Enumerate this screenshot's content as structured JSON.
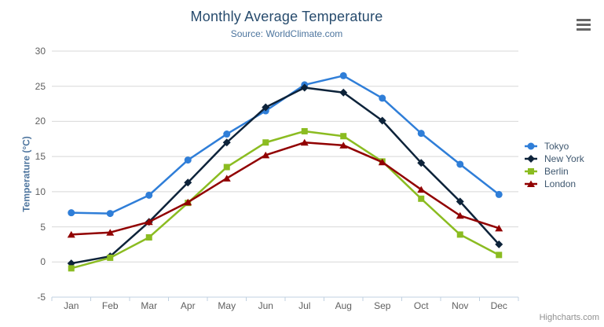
{
  "chart": {
    "title": "Monthly Average Temperature",
    "subtitle": "Source: WorldClimate.com",
    "y_axis_title": "Temperature (°C)",
    "credits": "Highcharts.com",
    "export_menu_icon": "hamburger-icon"
  },
  "chart_data": {
    "type": "line",
    "title": "Monthly Average Temperature",
    "subtitle": "Source: WorldClimate.com",
    "xlabel": "",
    "ylabel": "Temperature (°C)",
    "categories": [
      "Jan",
      "Feb",
      "Mar",
      "Apr",
      "May",
      "Jun",
      "Jul",
      "Aug",
      "Sep",
      "Oct",
      "Nov",
      "Dec"
    ],
    "series": [
      {
        "name": "Tokyo",
        "color": "#2f7ed8",
        "marker": "circle",
        "values": [
          7.0,
          6.9,
          9.5,
          14.5,
          18.2,
          21.5,
          25.2,
          26.5,
          23.3,
          18.3,
          13.9,
          9.6
        ]
      },
      {
        "name": "New York",
        "color": "#0d233a",
        "marker": "diamond",
        "values": [
          -0.2,
          0.8,
          5.7,
          11.3,
          17.0,
          22.0,
          24.8,
          24.1,
          20.1,
          14.1,
          8.6,
          2.5
        ]
      },
      {
        "name": "Berlin",
        "color": "#8bbc21",
        "marker": "square",
        "values": [
          -0.9,
          0.6,
          3.5,
          8.4,
          13.5,
          17.0,
          18.6,
          17.9,
          14.3,
          9.0,
          3.9,
          1.0
        ]
      },
      {
        "name": "London",
        "color": "#910000",
        "marker": "triangle",
        "values": [
          3.9,
          4.2,
          5.7,
          8.5,
          11.9,
          15.2,
          17.0,
          16.6,
          14.2,
          10.3,
          6.6,
          4.8
        ]
      }
    ],
    "ylim": [
      -5,
      30
    ],
    "yticks": [
      -5,
      0,
      5,
      10,
      15,
      20,
      25,
      30
    ],
    "grid": true,
    "legend_position": "right",
    "grid_color": "#d8d8d8",
    "axis_line_color": "#c0d0e0"
  }
}
